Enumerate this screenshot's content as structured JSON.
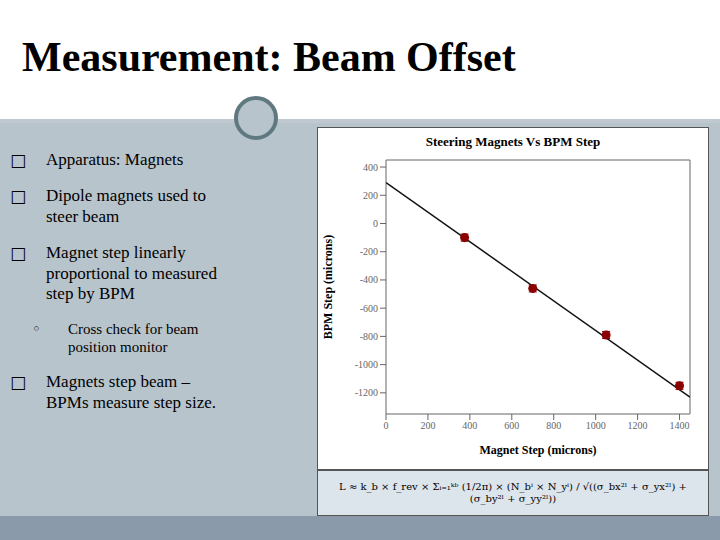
{
  "chart_data": {
    "type": "scatter",
    "title": "Steering Magnets Vs BPM Step",
    "xlabel": "Magnet Step (microns)",
    "ylabel": "BPM Step (microns)",
    "xlim": [
      0,
      1450
    ],
    "ylim": [
      -1350,
      450
    ],
    "xticks": [
      0,
      200,
      400,
      600,
      800,
      1000,
      1200,
      1400
    ],
    "yticks": [
      -1200,
      -1000,
      -800,
      -600,
      -400,
      -200,
      0,
      200,
      400
    ],
    "series": [
      {
        "type": "line",
        "color": "#111111",
        "x": [
          0,
          1450
        ],
        "values": [
          290,
          -1230
        ]
      },
      {
        "type": "scatter",
        "color": "#8b0000",
        "marker": "o",
        "x": [
          375,
          700,
          1050,
          1400
        ],
        "values": [
          -100,
          -460,
          -790,
          -1150
        ],
        "yerr": [
          25,
          25,
          25,
          25
        ]
      }
    ],
    "annotations": [
      "Measurement: Beam Offset",
      "□ Apparatus: Magnets",
      "□ Dipole magnets used to\nsteer beam",
      "□ Magnet step linearly\nproportional to measured\nstep by BPM",
      "◦ Cross check for beam\nposition monitor",
      "□ Magnets step beam –\nBPMs measure step size.",
      "L ≈ k_b × f_rev × Σᵢ₌₁ᵏᵇ (1/2π) × (N_bⁱ × N_yⁱ) / √((σ_bx²ˡ + σ_yx²ˡ) + (σ_by²ˡ + σ_yy²ˡ))"
    ]
  }
}
